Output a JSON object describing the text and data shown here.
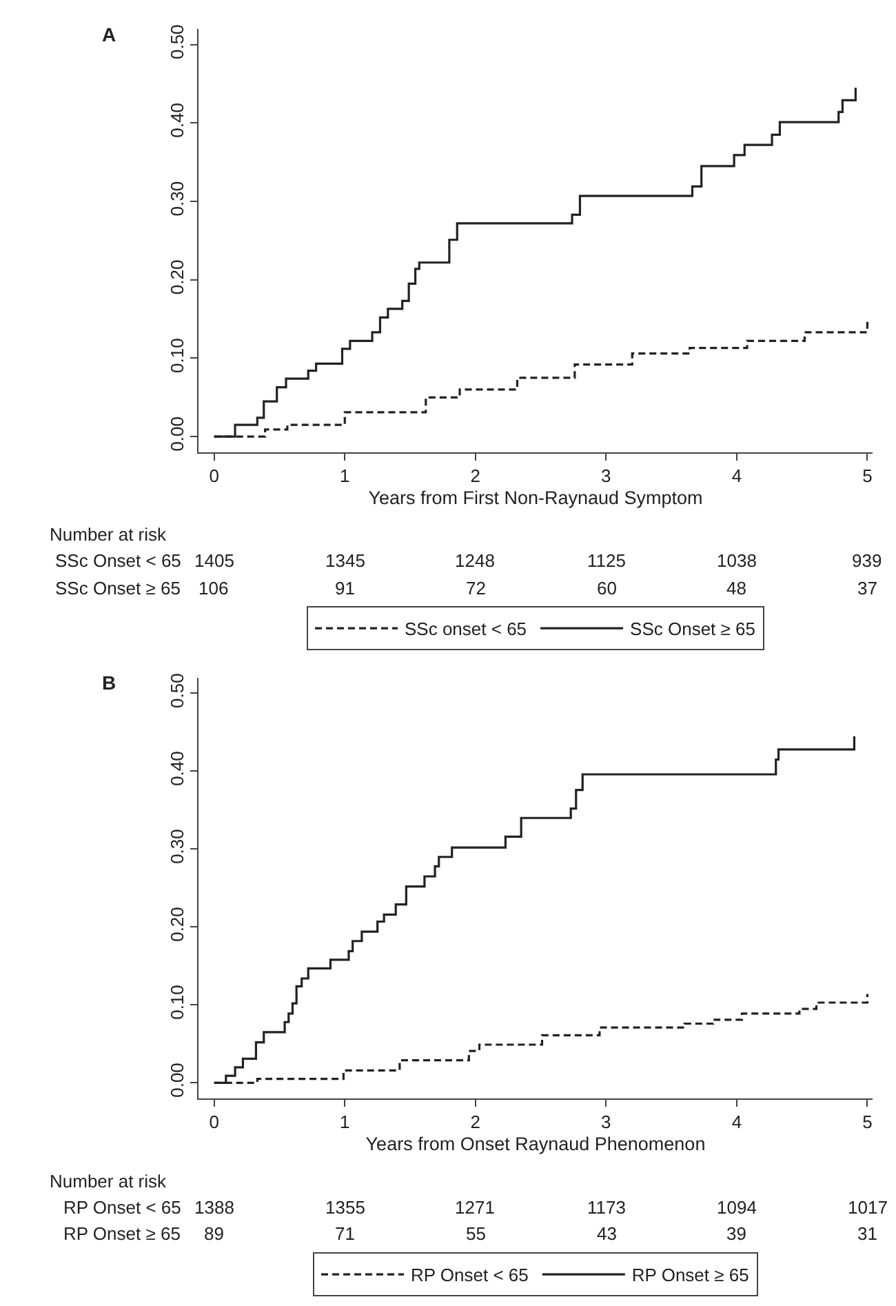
{
  "chart_data": [
    {
      "type": "step",
      "title": "A",
      "xlabel": "Years from First Non-Raynaud Symptom",
      "xlim": [
        -0.12,
        5.04
      ],
      "xticks": [
        0,
        1,
        2,
        3,
        4,
        5
      ],
      "ylim": [
        -0.02,
        0.52
      ],
      "yticks": [
        {
          "value": 0,
          "label": "0.00"
        },
        {
          "value": 0.1,
          "label": "0.10"
        },
        {
          "value": 0.2,
          "label": "0.20"
        },
        {
          "value": 0.3,
          "label": "0.30"
        },
        {
          "value": 0.4,
          "label": "0.40"
        },
        {
          "value": 0.5,
          "label": "0.50"
        }
      ],
      "legend": "bottom",
      "marker": "none",
      "series": [
        {
          "name": "SSc onset < 65",
          "color": "#222222",
          "line_style": "dashed",
          "x": [
            0,
            0.39,
            0.56,
            1.0,
            1.62,
            1.88,
            2.32,
            2.76,
            3.2,
            3.64,
            4.08,
            4.52,
            5.0
          ],
          "values": [
            0,
            0.009,
            0.015,
            0.031,
            0.05,
            0.06,
            0.075,
            0.092,
            0.106,
            0.113,
            0.122,
            0.133,
            0.148
          ]
        },
        {
          "name": "SSc Onset ≥ 65",
          "color": "#222222",
          "line_style": "solid",
          "x": [
            0,
            0.16,
            0.33,
            0.38,
            0.48,
            0.55,
            0.72,
            0.78,
            0.98,
            1.04,
            1.21,
            1.27,
            1.33,
            1.44,
            1.49,
            1.54,
            1.57,
            1.8,
            1.86,
            2.74,
            2.8,
            3.66,
            3.73,
            3.98,
            4.06,
            4.27,
            4.33,
            4.78,
            4.81,
            4.91
          ],
          "values": [
            0,
            0.015,
            0.024,
            0.045,
            0.063,
            0.074,
            0.084,
            0.093,
            0.112,
            0.122,
            0.133,
            0.152,
            0.163,
            0.173,
            0.195,
            0.214,
            0.222,
            0.251,
            0.272,
            0.283,
            0.307,
            0.319,
            0.345,
            0.359,
            0.372,
            0.385,
            0.401,
            0.414,
            0.429,
            0.445
          ]
        }
      ],
      "annotations": [
        "Number at risk",
        "SSc Onset < 65",
        "1405",
        "1345",
        "1248",
        "1125",
        "1038",
        "939",
        "SSc Onset ≥ 65",
        "106",
        "91",
        "72",
        "60",
        "48",
        "37"
      ]
    },
    {
      "type": "step",
      "title": "B",
      "xlabel": "Years from Onset Raynaud Phenomenon",
      "xlim": [
        -0.12,
        5.04
      ],
      "xticks": [
        0,
        1,
        2,
        3,
        4,
        5
      ],
      "ylim": [
        -0.02,
        0.52
      ],
      "yticks": [
        {
          "value": 0,
          "label": "0.00"
        },
        {
          "value": 0.1,
          "label": "0.10"
        },
        {
          "value": 0.2,
          "label": "0.20"
        },
        {
          "value": 0.3,
          "label": "0.30"
        },
        {
          "value": 0.4,
          "label": "0.40"
        },
        {
          "value": 0.5,
          "label": "0.50"
        }
      ],
      "legend": "bottom",
      "marker": "none",
      "series": [
        {
          "name": "RP Onset < 65",
          "color": "#222222",
          "line_style": "dashed",
          "x": [
            0,
            0.33,
            0.99,
            1.42,
            1.95,
            2.03,
            2.51,
            2.95,
            3.6,
            3.82,
            4.04,
            4.48,
            4.61,
            5.0
          ],
          "values": [
            0,
            0.005,
            0.016,
            0.029,
            0.041,
            0.049,
            0.061,
            0.071,
            0.076,
            0.081,
            0.089,
            0.095,
            0.103,
            0.114
          ]
        },
        {
          "name": "RP Onset ≥ 65",
          "color": "#222222",
          "line_style": "solid",
          "x": [
            0,
            0.09,
            0.16,
            0.22,
            0.32,
            0.38,
            0.54,
            0.57,
            0.6,
            0.63,
            0.67,
            0.72,
            0.89,
            1.03,
            1.06,
            1.13,
            1.25,
            1.3,
            1.39,
            1.47,
            1.61,
            1.69,
            1.72,
            1.82,
            2.23,
            2.35,
            2.73,
            2.77,
            2.82,
            4.3,
            4.32,
            4.9
          ],
          "values": [
            0,
            0.009,
            0.02,
            0.031,
            0.052,
            0.065,
            0.078,
            0.089,
            0.102,
            0.124,
            0.134,
            0.147,
            0.158,
            0.169,
            0.182,
            0.194,
            0.207,
            0.216,
            0.229,
            0.252,
            0.265,
            0.278,
            0.29,
            0.302,
            0.316,
            0.34,
            0.352,
            0.376,
            0.396,
            0.415,
            0.428,
            0.445
          ]
        }
      ],
      "annotations": [
        "Number at risk",
        "RP Onset < 65",
        "1388",
        "1355",
        "1271",
        "1173",
        "1094",
        "1017",
        "RP Onset ≥ 65",
        "89",
        "71",
        "55",
        "43",
        "39",
        "31"
      ]
    }
  ]
}
